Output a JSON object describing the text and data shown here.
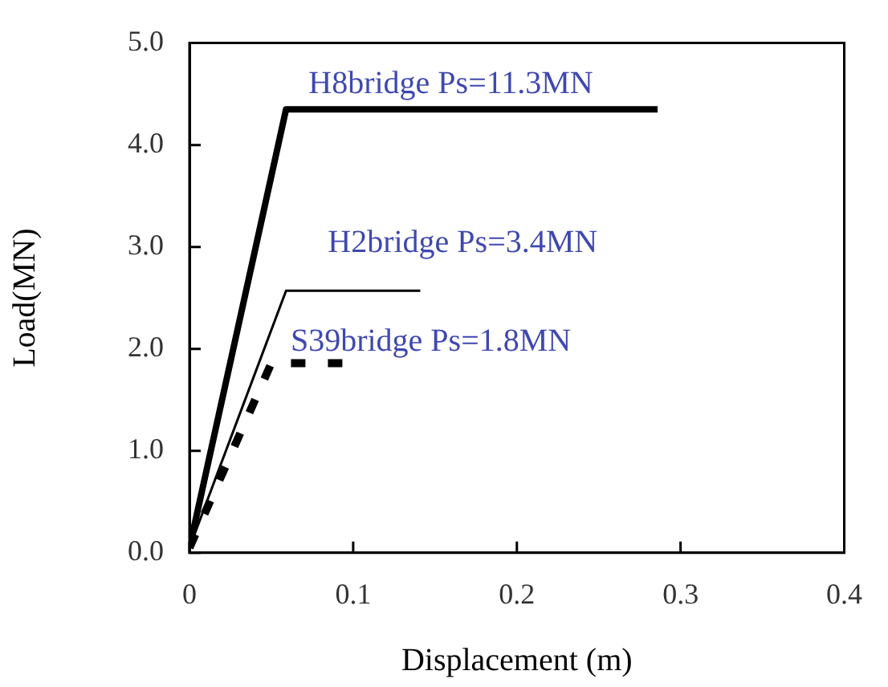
{
  "chart_data": {
    "type": "line",
    "xlabel": "Displacement (m)",
    "ylabel": "Load(MN)",
    "xlim": [
      0,
      0.4
    ],
    "xticks": [
      0,
      {
        "value": 0.1,
        "label": "0.1"
      },
      {
        "value": 0.2,
        "label": "0.2"
      },
      {
        "value": 0.3,
        "label": "0.3"
      },
      {
        "value": 0.4,
        "label": "0.4"
      }
    ],
    "ylim": [
      0,
      5
    ],
    "yticks": [
      {
        "value": 0,
        "label": "0.0"
      },
      {
        "value": 1,
        "label": "1.0"
      },
      {
        "value": 2,
        "label": "2.0"
      },
      {
        "value": 3,
        "label": "3.0"
      },
      {
        "value": 4,
        "label": "4.0"
      },
      {
        "value": 5,
        "label": "5.0"
      }
    ],
    "grid": false,
    "legend": false,
    "marker": "none",
    "series": [
      {
        "name": "H8bridge Ps=11.3MN",
        "color": "#000000",
        "line_style": "solid",
        "x": [
          0,
          0.059,
          0.286
        ],
        "values": [
          0.05,
          4.35,
          4.35
        ]
      },
      {
        "name": "H2bridge Ps=3.4MN",
        "color": "#000000",
        "line_style": "solid",
        "x": [
          0,
          0.059,
          0.141
        ],
        "values": [
          0.05,
          2.57,
          2.57
        ]
      },
      {
        "name": "S39bridge Ps=1.8MN",
        "color": "#000000",
        "line_style": "dashed",
        "x": [
          0,
          0.05,
          0.097
        ],
        "values": [
          0.05,
          1.86,
          1.86
        ]
      }
    ]
  }
}
